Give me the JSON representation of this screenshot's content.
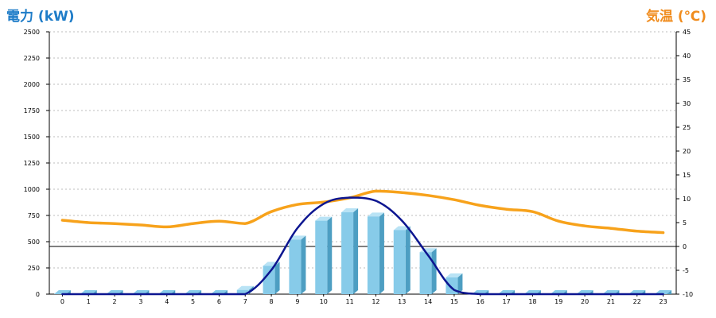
{
  "titles": {
    "left": "電力 (kW)",
    "right": "気温 (℃)"
  },
  "colors": {
    "left_title": "#1e7cc8",
    "right_title": "#f08c1e",
    "bar_front": "#87cbe9",
    "bar_side": "#4d9ec2",
    "bar_top": "#b9e3f5",
    "power_line": "#0c1590",
    "temp_line": "#f7a21b",
    "grid": "#bdbdbd",
    "zero_line": "#000000"
  },
  "chart_data": {
    "type": "bar",
    "categories": [
      "0",
      "1",
      "2",
      "3",
      "4",
      "5",
      "6",
      "7",
      "8",
      "9",
      "10",
      "11",
      "12",
      "13",
      "14",
      "15",
      "16",
      "17",
      "18",
      "19",
      "20",
      "21",
      "22",
      "23"
    ],
    "series": [
      {
        "kind": "bar",
        "axis": "left",
        "values": [
          0,
          0,
          0,
          0,
          0,
          0,
          0,
          40,
          270,
          520,
          700,
          780,
          740,
          610,
          400,
          160,
          0,
          0,
          0,
          0,
          0,
          0,
          0,
          0
        ]
      },
      {
        "kind": "line",
        "axis": "left",
        "values": [
          0,
          0,
          0,
          0,
          0,
          0,
          0,
          0,
          230,
          630,
          860,
          920,
          890,
          700,
          370,
          40,
          0,
          0,
          0,
          0,
          0,
          0,
          0,
          0
        ]
      },
      {
        "kind": "line",
        "axis": "right",
        "values": [
          5.5,
          5.0,
          4.8,
          4.5,
          4.1,
          4.8,
          5.3,
          4.8,
          7.3,
          8.8,
          9.3,
          10.2,
          11.6,
          11.3,
          10.7,
          9.8,
          8.6,
          7.8,
          7.3,
          5.3,
          4.3,
          3.8,
          3.2,
          2.9
        ]
      }
    ],
    "left_axis": {
      "ylim": [
        0,
        2500
      ],
      "ticks": [
        "0",
        "250",
        "500",
        "750",
        "1000",
        "1250",
        "1500",
        "1750",
        "2000",
        "2250",
        "2500"
      ]
    },
    "right_axis": {
      "ylim": [
        -10,
        45
      ],
      "ticks": [
        "-10",
        "-5",
        "0",
        "5",
        "10",
        "15",
        "20",
        "25",
        "30",
        "35",
        "40",
        "45"
      ]
    },
    "grid": true
  }
}
